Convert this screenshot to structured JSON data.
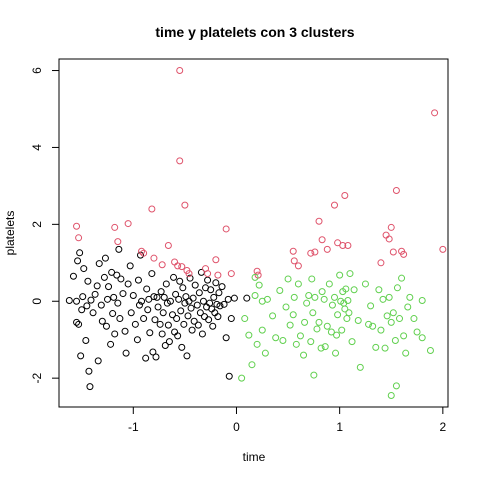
{
  "chart_data": {
    "type": "scatter",
    "title": "time  y  platelets con  3  clusters",
    "xlabel": "time",
    "ylabel": "platelets",
    "xlim": [
      -1.72,
      2.05
    ],
    "ylim": [
      -2.75,
      6.3
    ],
    "xticks": [
      -1,
      0,
      1,
      2
    ],
    "yticks": [
      -2,
      0,
      2,
      4,
      6
    ],
    "grid": false,
    "legend": "none",
    "series": [
      {
        "color": "#000000",
        "points": [
          [
            -1.62,
            0.02
          ],
          [
            -1.58,
            0.65
          ],
          [
            -1.55,
            0.0
          ],
          [
            -1.55,
            -0.55
          ],
          [
            -1.54,
            1.05
          ],
          [
            -1.53,
            -0.6
          ],
          [
            -1.52,
            1.26
          ],
          [
            -1.51,
            -1.42
          ],
          [
            -1.5,
            -0.22
          ],
          [
            -1.49,
            0.12
          ],
          [
            -1.48,
            0.85
          ],
          [
            -1.46,
            -1.02
          ],
          [
            -1.45,
            -0.12
          ],
          [
            -1.44,
            0.52
          ],
          [
            -1.43,
            -1.82
          ],
          [
            -1.42,
            -2.22
          ],
          [
            -1.41,
            0.03
          ],
          [
            -1.39,
            -0.3
          ],
          [
            -1.37,
            0.18
          ],
          [
            -1.35,
            0.4
          ],
          [
            -1.34,
            -1.55
          ],
          [
            -1.33,
            0.98
          ],
          [
            -1.31,
            -0.1
          ],
          [
            -1.3,
            -0.52
          ],
          [
            -1.28,
            0.62
          ],
          [
            -1.27,
            1.12
          ],
          [
            -1.26,
            -0.65
          ],
          [
            -1.25,
            0.05
          ],
          [
            -1.24,
            0.38
          ],
          [
            -1.22,
            -1.12
          ],
          [
            -1.21,
            0.75
          ],
          [
            -1.2,
            -0.32
          ],
          [
            -1.19,
            0.1
          ],
          [
            -1.18,
            -0.85
          ],
          [
            -1.16,
            0.68
          ],
          [
            -1.15,
            -0.05
          ],
          [
            -1.14,
            1.35
          ],
          [
            -1.13,
            -0.45
          ],
          [
            -1.12,
            0.58
          ],
          [
            -1.1,
            0.2
          ],
          [
            -1.08,
            -0.78
          ],
          [
            -1.07,
            -1.35
          ],
          [
            -1.05,
            0.45
          ],
          [
            -1.03,
            0.92
          ],
          [
            -1.02,
            -0.3
          ],
          [
            -1.0,
            0.15
          ],
          [
            -0.98,
            -0.6
          ],
          [
            -0.96,
            -1.0
          ],
          [
            -0.95,
            0.55
          ],
          [
            -0.94,
            -0.1
          ],
          [
            -0.93,
            1.2
          ],
          [
            -0.92,
            0.0
          ],
          [
            -0.9,
            -0.45
          ],
          [
            -0.88,
            -1.48
          ],
          [
            -0.87,
            0.32
          ],
          [
            -0.86,
            -0.22
          ],
          [
            -0.85,
            0.05
          ],
          [
            -0.84,
            -0.82
          ],
          [
            -0.82,
            0.72
          ],
          [
            -0.81,
            -1.32
          ],
          [
            -0.8,
            0.12
          ],
          [
            -0.79,
            -0.48
          ],
          [
            -0.78,
            -1.45
          ],
          [
            -0.77,
            0.1
          ],
          [
            -0.76,
            -0.15
          ],
          [
            -0.74,
            -0.6
          ],
          [
            -0.73,
            0.25
          ],
          [
            -0.72,
            -0.85
          ],
          [
            -0.71,
            -0.3
          ],
          [
            -0.7,
            0.1
          ],
          [
            -0.69,
            -1.15
          ],
          [
            -0.68,
            0.45
          ],
          [
            -0.67,
            -0.05
          ],
          [
            -0.66,
            -0.62
          ],
          [
            -0.65,
            -1.05
          ],
          [
            -0.64,
            0.0
          ],
          [
            -0.62,
            -0.35
          ],
          [
            -0.61,
            0.62
          ],
          [
            -0.6,
            -0.8
          ],
          [
            -0.59,
            0.18
          ],
          [
            -0.58,
            -0.45
          ],
          [
            -0.57,
            -0.9
          ],
          [
            -0.56,
            0.05
          ],
          [
            -0.55,
            0.52
          ],
          [
            -0.54,
            -0.25
          ],
          [
            -0.53,
            -1.2
          ],
          [
            -0.52,
            0.35
          ],
          [
            -0.51,
            -0.6
          ],
          [
            -0.5,
            -0.05
          ],
          [
            -0.49,
            0.12
          ],
          [
            -0.48,
            -1.42
          ],
          [
            -0.47,
            -0.38
          ],
          [
            -0.46,
            0.0
          ],
          [
            -0.45,
            0.6
          ],
          [
            -0.44,
            -0.18
          ],
          [
            -0.43,
            -0.75
          ],
          [
            -0.42,
            0.08
          ],
          [
            -0.41,
            -0.52
          ],
          [
            -0.4,
            0.42
          ],
          [
            -0.38,
            -0.1
          ],
          [
            -0.37,
            -0.62
          ],
          [
            -0.36,
            0.22
          ],
          [
            -0.35,
            -0.3
          ],
          [
            -0.34,
            0.75
          ],
          [
            -0.33,
            -0.85
          ],
          [
            -0.32,
            0.0
          ],
          [
            -0.31,
            -0.4
          ],
          [
            -0.3,
            0.35
          ],
          [
            -0.29,
            -0.15
          ],
          [
            -0.28,
            0.55
          ],
          [
            -0.27,
            -0.48
          ],
          [
            -0.26,
            -0.05
          ],
          [
            -0.25,
            0.3
          ],
          [
            -0.24,
            -0.2
          ],
          [
            -0.23,
            -0.65
          ],
          [
            -0.22,
            0.1
          ],
          [
            -0.21,
            -0.3
          ],
          [
            -0.2,
            0.48
          ],
          [
            -0.19,
            -0.08
          ],
          [
            -0.18,
            -0.4
          ],
          [
            -0.17,
            0.22
          ],
          [
            -0.16,
            -0.12
          ],
          [
            -0.14,
            0.38
          ],
          [
            -0.12,
            -0.08
          ],
          [
            -0.1,
            -0.95
          ],
          [
            -0.08,
            0.05
          ],
          [
            -0.07,
            -1.95
          ],
          [
            -0.05,
            -0.45
          ],
          [
            -0.02,
            0.08
          ],
          [
            0.1,
            0.08
          ]
        ]
      },
      {
        "color": "#DF536B",
        "points": [
          [
            -1.55,
            1.95
          ],
          [
            -1.53,
            1.65
          ],
          [
            -1.18,
            1.92
          ],
          [
            -1.15,
            1.55
          ],
          [
            -1.05,
            2.02
          ],
          [
            -0.92,
            1.3
          ],
          [
            -0.9,
            1.25
          ],
          [
            -0.82,
            2.4
          ],
          [
            -0.8,
            1.12
          ],
          [
            -0.72,
            0.95
          ],
          [
            -0.66,
            1.45
          ],
          [
            -0.6,
            1.02
          ],
          [
            -0.57,
            0.92
          ],
          [
            -0.55,
            6.0
          ],
          [
            -0.55,
            3.65
          ],
          [
            -0.53,
            0.9
          ],
          [
            -0.5,
            2.5
          ],
          [
            -0.48,
            0.8
          ],
          [
            -0.46,
            0.72
          ],
          [
            -0.3,
            0.85
          ],
          [
            -0.28,
            0.72
          ],
          [
            -0.2,
            1.08
          ],
          [
            -0.18,
            0.68
          ],
          [
            -0.1,
            1.88
          ],
          [
            -0.05,
            0.72
          ],
          [
            0.2,
            0.78
          ],
          [
            0.21,
            0.68
          ],
          [
            0.55,
            1.3
          ],
          [
            0.56,
            1.05
          ],
          [
            0.6,
            0.92
          ],
          [
            0.72,
            1.25
          ],
          [
            0.76,
            1.28
          ],
          [
            0.8,
            2.08
          ],
          [
            0.83,
            1.6
          ],
          [
            0.88,
            1.35
          ],
          [
            0.95,
            2.5
          ],
          [
            0.98,
            1.52
          ],
          [
            1.03,
            1.45
          ],
          [
            1.05,
            2.75
          ],
          [
            1.08,
            1.45
          ],
          [
            1.4,
            1.0
          ],
          [
            1.45,
            1.72
          ],
          [
            1.48,
            1.62
          ],
          [
            1.5,
            1.92
          ],
          [
            1.52,
            1.28
          ],
          [
            1.55,
            2.88
          ],
          [
            1.6,
            1.3
          ],
          [
            1.62,
            1.22
          ],
          [
            1.92,
            4.9
          ],
          [
            2.0,
            1.35
          ]
        ]
      },
      {
        "color": "#61D04F",
        "points": [
          [
            0.05,
            -2.0
          ],
          [
            0.08,
            -0.45
          ],
          [
            0.12,
            -0.88
          ],
          [
            0.15,
            -1.65
          ],
          [
            0.18,
            0.15
          ],
          [
            0.18,
            0.62
          ],
          [
            0.2,
            -1.12
          ],
          [
            0.22,
            0.42
          ],
          [
            0.25,
            -0.75
          ],
          [
            0.25,
            0.0
          ],
          [
            0.28,
            -1.35
          ],
          [
            0.3,
            0.05
          ],
          [
            0.35,
            -0.38
          ],
          [
            0.38,
            -0.95
          ],
          [
            0.42,
            0.28
          ],
          [
            0.45,
            -1.02
          ],
          [
            0.48,
            -0.15
          ],
          [
            0.5,
            0.58
          ],
          [
            0.52,
            -0.62
          ],
          [
            0.55,
            -0.35
          ],
          [
            0.56,
            0.1
          ],
          [
            0.58,
            -1.12
          ],
          [
            0.6,
            0.45
          ],
          [
            0.62,
            -0.9
          ],
          [
            0.65,
            -1.4
          ],
          [
            0.66,
            -0.55
          ],
          [
            0.68,
            -0.05
          ],
          [
            0.7,
            0.15
          ],
          [
            0.72,
            -1.05
          ],
          [
            0.73,
            0.58
          ],
          [
            0.74,
            -0.3
          ],
          [
            0.75,
            -1.92
          ],
          [
            0.76,
            0.1
          ],
          [
            0.78,
            -0.72
          ],
          [
            0.8,
            -0.55
          ],
          [
            0.82,
            -1.22
          ],
          [
            0.83,
            0.25
          ],
          [
            0.85,
            0.05
          ],
          [
            0.86,
            -1.18
          ],
          [
            0.88,
            -0.65
          ],
          [
            0.9,
            0.45
          ],
          [
            0.92,
            -0.8
          ],
          [
            0.93,
            -0.1
          ],
          [
            0.95,
            0.1
          ],
          [
            0.96,
            -1.35
          ],
          [
            0.97,
            -0.88
          ],
          [
            0.98,
            -0.35
          ],
          [
            1.0,
            0.68
          ],
          [
            1.01,
            0.0
          ],
          [
            1.02,
            -0.75
          ],
          [
            1.03,
            0.25
          ],
          [
            1.04,
            -0.05
          ],
          [
            1.05,
            -0.2
          ],
          [
            1.06,
            0.32
          ],
          [
            1.07,
            -0.45
          ],
          [
            1.08,
            0.02
          ],
          [
            1.09,
            -0.3
          ],
          [
            1.1,
            0.72
          ],
          [
            1.12,
            -1.05
          ],
          [
            1.14,
            0.3
          ],
          [
            1.18,
            -0.5
          ],
          [
            1.2,
            -1.72
          ],
          [
            1.25,
            0.45
          ],
          [
            1.28,
            -0.6
          ],
          [
            1.3,
            -0.12
          ],
          [
            1.32,
            -0.65
          ],
          [
            1.35,
            -1.2
          ],
          [
            1.38,
            0.3
          ],
          [
            1.4,
            -0.75
          ],
          [
            1.42,
            0.05
          ],
          [
            1.44,
            -1.22
          ],
          [
            1.46,
            -0.38
          ],
          [
            1.48,
            0.1
          ],
          [
            1.5,
            -0.55
          ],
          [
            1.5,
            -2.45
          ],
          [
            1.52,
            -0.3
          ],
          [
            1.54,
            -1.02
          ],
          [
            1.55,
            -2.2
          ],
          [
            1.56,
            0.35
          ],
          [
            1.58,
            -0.45
          ],
          [
            1.6,
            0.6
          ],
          [
            1.62,
            -0.9
          ],
          [
            1.64,
            -1.35
          ],
          [
            1.66,
            -0.15
          ],
          [
            1.68,
            0.1
          ],
          [
            1.72,
            -0.45
          ],
          [
            1.75,
            -0.8
          ],
          [
            1.8,
            0.02
          ],
          [
            1.8,
            -0.95
          ],
          [
            1.88,
            -1.28
          ]
        ]
      }
    ]
  }
}
